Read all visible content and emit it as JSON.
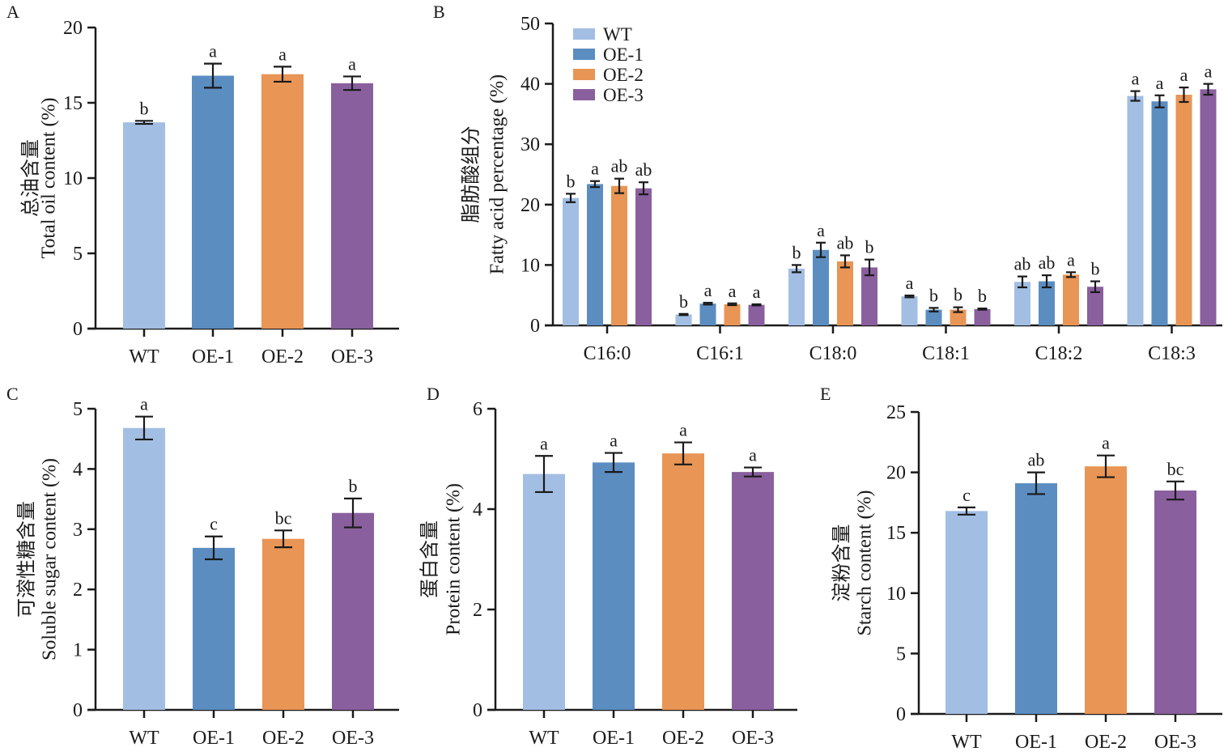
{
  "colors": {
    "WT": "#A2BEE3",
    "OE-1": "#5B8DC1",
    "OE-2": "#E89555",
    "OE-3": "#8A5F9E",
    "axis": "#1a1a1a"
  },
  "chart_data": [
    {
      "panel": "A",
      "type": "bar",
      "title": "",
      "ylabel_cn": "总油含量",
      "ylabel": "Total oil content (%)",
      "xlabel": "",
      "categories": [
        "WT",
        "OE-1",
        "OE-2",
        "OE-3"
      ],
      "values": [
        13.7,
        16.8,
        16.9,
        16.3
      ],
      "errors": [
        0.1,
        0.8,
        0.5,
        0.45
      ],
      "significance": [
        "b",
        "a",
        "a",
        "a"
      ],
      "ylim": [
        0,
        20
      ],
      "yticks": [
        0,
        5,
        10,
        15,
        20
      ],
      "grid": false
    },
    {
      "panel": "B",
      "type": "bar",
      "title": "",
      "ylabel_cn": "脂肪酸组分",
      "ylabel": "Fatty acid percentage (%)",
      "xlabel": "",
      "categories": [
        "C16:0",
        "C16:1",
        "C18:0",
        "C18:1",
        "C18:2",
        "C18:3"
      ],
      "series": [
        {
          "name": "WT",
          "values": [
            21.1,
            1.8,
            9.4,
            4.8,
            7.2,
            38.0
          ],
          "errors": [
            0.7,
            0.1,
            0.6,
            0.15,
            0.9,
            0.8
          ],
          "significance": [
            "b",
            "b",
            "b",
            "a",
            "ab",
            "a"
          ]
        },
        {
          "name": "OE-1",
          "values": [
            23.4,
            3.6,
            12.5,
            2.6,
            7.3,
            37.1
          ],
          "errors": [
            0.5,
            0.15,
            1.2,
            0.3,
            1.0,
            1.0
          ],
          "significance": [
            "a",
            "a",
            "a",
            "b",
            "ab",
            "a"
          ]
        },
        {
          "name": "OE-2",
          "values": [
            23.1,
            3.5,
            10.6,
            2.6,
            8.4,
            38.2
          ],
          "errors": [
            1.2,
            0.15,
            1.0,
            0.4,
            0.4,
            1.2
          ],
          "significance": [
            "ab",
            "a",
            "ab",
            "b",
            "a",
            "a"
          ]
        },
        {
          "name": "OE-3",
          "values": [
            22.7,
            3.4,
            9.6,
            2.7,
            6.4,
            39.1
          ],
          "errors": [
            1.0,
            0.1,
            1.3,
            0.1,
            0.9,
            0.9
          ],
          "significance": [
            "ab",
            "a",
            "b",
            "b",
            "b",
            "a"
          ]
        }
      ],
      "legend": [
        "WT",
        "OE-1",
        "OE-2",
        "OE-3"
      ],
      "legend_position": "top-left",
      "ylim": [
        0,
        50
      ],
      "yticks": [
        0,
        10,
        20,
        30,
        40,
        50
      ],
      "grid": false
    },
    {
      "panel": "C",
      "type": "bar",
      "title": "",
      "ylabel_cn": "可溶性糖含量",
      "ylabel": "Soluble sugar content (%)",
      "xlabel": "",
      "categories": [
        "WT",
        "OE-1",
        "OE-2",
        "OE-3"
      ],
      "values": [
        4.68,
        2.69,
        2.84,
        3.27
      ],
      "errors": [
        0.19,
        0.19,
        0.14,
        0.24
      ],
      "significance": [
        "a",
        "c",
        "bc",
        "b"
      ],
      "ylim": [
        0,
        5
      ],
      "yticks": [
        0,
        1,
        2,
        3,
        4,
        5
      ],
      "grid": false
    },
    {
      "panel": "D",
      "type": "bar",
      "title": "",
      "ylabel_cn": "蛋白含量",
      "ylabel": "Protein content (%)",
      "xlabel": "",
      "categories": [
        "WT",
        "OE-1",
        "OE-2",
        "OE-3"
      ],
      "values": [
        4.7,
        4.93,
        5.11,
        4.74
      ],
      "errors": [
        0.36,
        0.19,
        0.22,
        0.09
      ],
      "significance": [
        "a",
        "a",
        "a",
        "a"
      ],
      "ylim": [
        0,
        6
      ],
      "yticks": [
        0,
        2,
        4,
        6
      ],
      "grid": false
    },
    {
      "panel": "E",
      "type": "bar",
      "title": "",
      "ylabel_cn": "淀粉含量",
      "ylabel": "Starch content (%)",
      "xlabel": "",
      "categories": [
        "WT",
        "OE-1",
        "OE-2",
        "OE-3"
      ],
      "values": [
        16.8,
        19.1,
        20.5,
        18.5
      ],
      "errors": [
        0.3,
        0.9,
        0.9,
        0.75
      ],
      "significance": [
        "c",
        "ab",
        "a",
        "bc"
      ],
      "ylim": [
        0,
        25
      ],
      "yticks": [
        0,
        5,
        10,
        15,
        20,
        25
      ],
      "grid": false
    }
  ]
}
